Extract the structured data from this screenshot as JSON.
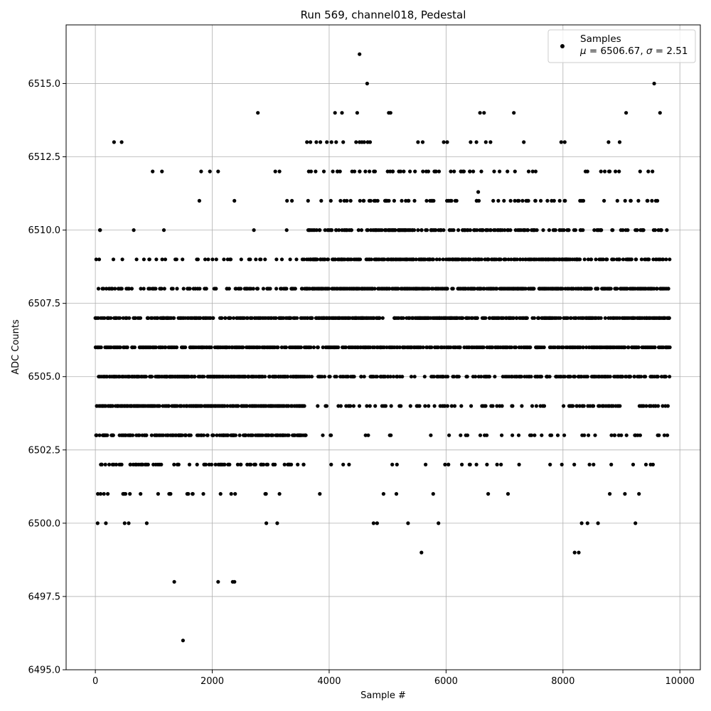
{
  "chart_data": {
    "type": "scatter",
    "title": "Run 569, channel018, Pedestal",
    "xlabel": "Sample #",
    "ylabel": "ADC Counts",
    "xlim": [
      -500,
      10350
    ],
    "ylim": [
      6495.0,
      6517.0
    ],
    "xticks": [
      0,
      2000,
      4000,
      6000,
      8000,
      10000
    ],
    "xtick_labels": [
      "0",
      "2000",
      "4000",
      "6000",
      "8000",
      "10000"
    ],
    "yticks": [
      6495.0,
      6497.5,
      6500.0,
      6502.5,
      6505.0,
      6507.5,
      6510.0,
      6512.5,
      6515.0
    ],
    "ytick_labels": [
      "6495.0",
      "6497.5",
      "6500.0",
      "6502.5",
      "6505.0",
      "6507.5",
      "6510.0",
      "6512.5",
      "6515.0"
    ],
    "grid": true,
    "legend": {
      "placement": "top-right",
      "entries": [
        "Samples",
        "$\\mu$ = 6506.67, $\\sigma$ = 2.51"
      ],
      "label_line1": "Samples",
      "label_line2_mu": "μ",
      "label_line2_mid": " = 6506.67, ",
      "label_line2_sigma": "σ",
      "label_line2_end": " = 2.51"
    },
    "marker_color": "#000000",
    "series": [
      {
        "name": "Samples",
        "sample_range": [
          0,
          9830
        ],
        "mean": 6506.67,
        "sigma": 2.51,
        "points": [
          [
            1500,
            6496
          ],
          [
            1350,
            6498
          ],
          [
            2100,
            6498
          ],
          [
            2350,
            6498
          ],
          [
            2380,
            6498
          ],
          [
            4520,
            6516
          ],
          [
            4650,
            6515
          ],
          [
            9560,
            6515
          ],
          [
            2780,
            6514
          ],
          [
            4100,
            6514
          ],
          [
            4220,
            6514
          ],
          [
            4480,
            6514
          ],
          [
            5020,
            6514
          ],
          [
            5050,
            6514
          ],
          [
            6580,
            6514
          ],
          [
            6650,
            6514
          ],
          [
            7160,
            6514
          ],
          [
            9080,
            6514
          ],
          [
            9660,
            6514
          ],
          [
            320,
            6513
          ],
          [
            450,
            6513
          ],
          [
            3620,
            6513
          ],
          [
            3680,
            6513
          ],
          [
            3780,
            6513
          ],
          [
            3850,
            6513
          ],
          [
            3960,
            6513
          ],
          [
            4040,
            6513
          ],
          [
            4120,
            6513
          ],
          [
            4240,
            6513
          ],
          [
            4460,
            6513
          ],
          [
            4520,
            6513
          ],
          [
            4560,
            6513
          ],
          [
            4600,
            6513
          ],
          [
            4660,
            6513
          ],
          [
            4700,
            6513
          ],
          [
            5520,
            6513
          ],
          [
            5600,
            6513
          ],
          [
            5960,
            6513
          ],
          [
            6020,
            6513
          ],
          [
            6420,
            6513
          ],
          [
            6520,
            6513
          ],
          [
            6680,
            6513
          ],
          [
            6760,
            6513
          ],
          [
            7330,
            6513
          ],
          [
            7970,
            6513
          ],
          [
            8030,
            6513
          ],
          [
            8780,
            6513
          ],
          [
            8970,
            6513
          ],
          [
            980,
            6512
          ],
          [
            1140,
            6512
          ],
          [
            1810,
            6512
          ],
          [
            1960,
            6512
          ],
          [
            2100,
            6512
          ],
          [
            3150,
            6512
          ],
          [
            8420,
            6512
          ],
          [
            8650,
            6512
          ],
          [
            8800,
            6512
          ],
          [
            8960,
            6512
          ],
          [
            9320,
            6512
          ],
          [
            9460,
            6512
          ],
          [
            6550,
            6511.3
          ],
          [
            5870,
            6500
          ],
          [
            5580,
            6499
          ],
          [
            8200,
            6499
          ],
          [
            8270,
            6499
          ],
          [
            9240,
            6500
          ],
          [
            8320,
            6500
          ],
          [
            8420,
            6500
          ],
          [
            8600,
            6500
          ],
          [
            5350,
            6500
          ],
          [
            4760,
            6500
          ],
          [
            4820,
            6500
          ],
          [
            3840,
            6501
          ],
          [
            4930,
            6501
          ],
          [
            5150,
            6501
          ],
          [
            5780,
            6501
          ],
          [
            6720,
            6501
          ],
          [
            7060,
            6501
          ],
          [
            8800,
            6501
          ],
          [
            9060,
            6501
          ],
          [
            9300,
            6501
          ],
          [
            9230,
            6503
          ],
          [
            9200,
            6502
          ],
          [
            4240,
            6502
          ],
          [
            4340,
            6502
          ],
          [
            5080,
            6502
          ],
          [
            5160,
            6502
          ],
          [
            5650,
            6502
          ],
          [
            6040,
            6502
          ],
          [
            6270,
            6502
          ],
          [
            6520,
            6502
          ],
          [
            6700,
            6502
          ],
          [
            6940,
            6502
          ],
          [
            7250,
            6502
          ],
          [
            7780,
            6502
          ],
          [
            7980,
            6502
          ],
          [
            9420,
            6502
          ],
          [
            9500,
            6502
          ]
        ]
      }
    ]
  }
}
